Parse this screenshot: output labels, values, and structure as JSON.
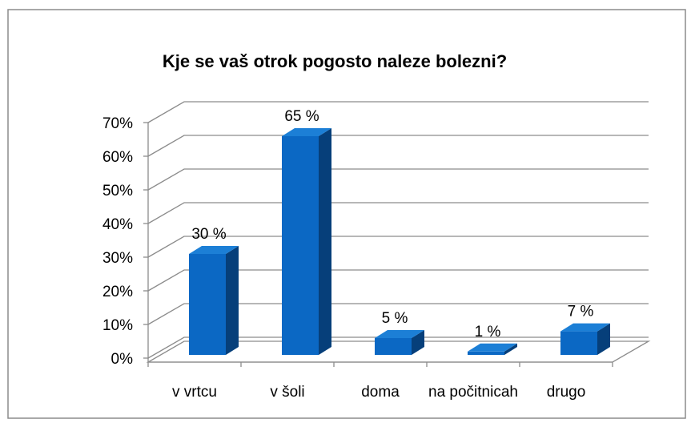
{
  "chart_data": {
    "type": "bar3d",
    "title": "Kje se vaš otrok pogosto naleze bolezni?",
    "categories": [
      "v vrtcu",
      "v šoli",
      "doma",
      "na počitnicah",
      "drugo"
    ],
    "values": [
      30,
      65,
      5,
      1,
      7
    ],
    "value_labels": [
      "30 %",
      "65 %",
      "5 %",
      "1 %",
      "7 %"
    ],
    "color": "#0b68c4",
    "ylim": [
      0,
      70
    ],
    "yticks": [
      {
        "value": 0,
        "label": "0%"
      },
      {
        "value": 10,
        "label": "10%"
      },
      {
        "value": 20,
        "label": "20%"
      },
      {
        "value": 30,
        "label": "30%"
      },
      {
        "value": 40,
        "label": "40%"
      },
      {
        "value": 50,
        "label": "50%"
      },
      {
        "value": 60,
        "label": "60%"
      },
      {
        "value": 70,
        "label": "70%"
      }
    ],
    "grid": true
  }
}
